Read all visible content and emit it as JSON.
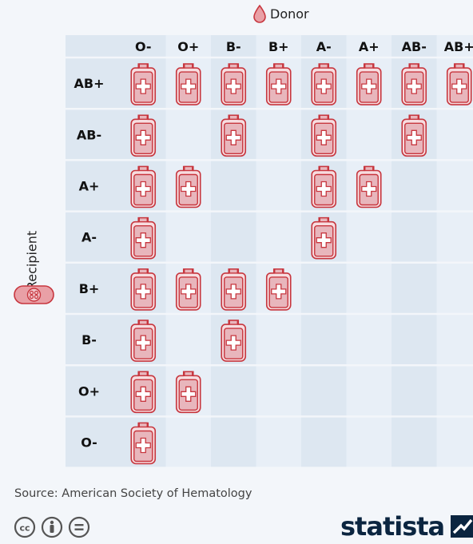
{
  "legend": {
    "donor_label": "Donor",
    "recipient_label": "Recipient"
  },
  "colors": {
    "grid_dark": "#dde7f1",
    "grid_light": "#e8eff7",
    "bag_fill": "#e8b6bc",
    "bag_stroke": "#c7363e",
    "accent": "#e9757b"
  },
  "chart_data": {
    "type": "table",
    "title": "",
    "columns_label": "Donor",
    "rows_label": "Recipient",
    "donors": [
      "O-",
      "O+",
      "B-",
      "B+",
      "A-",
      "A+",
      "AB-",
      "AB+"
    ],
    "recipients": [
      "AB+",
      "AB-",
      "A+",
      "A-",
      "B+",
      "B-",
      "O+",
      "O-"
    ],
    "compatibility": [
      [
        1,
        1,
        1,
        1,
        1,
        1,
        1,
        1
      ],
      [
        1,
        0,
        1,
        0,
        1,
        0,
        1,
        0
      ],
      [
        1,
        1,
        0,
        0,
        1,
        1,
        0,
        0
      ],
      [
        1,
        0,
        0,
        0,
        1,
        0,
        0,
        0
      ],
      [
        1,
        1,
        1,
        1,
        0,
        0,
        0,
        0
      ],
      [
        1,
        0,
        1,
        0,
        0,
        0,
        0,
        0
      ],
      [
        1,
        1,
        0,
        0,
        0,
        0,
        0,
        0
      ],
      [
        1,
        0,
        0,
        0,
        0,
        0,
        0,
        0
      ]
    ],
    "compatible_icon": "blood-bag-icon"
  },
  "footer": {
    "source": "Source: American Society of Hematology",
    "brand": "statista",
    "license_icons": [
      "cc-icon",
      "attribution-icon",
      "no-derivatives-icon"
    ]
  }
}
